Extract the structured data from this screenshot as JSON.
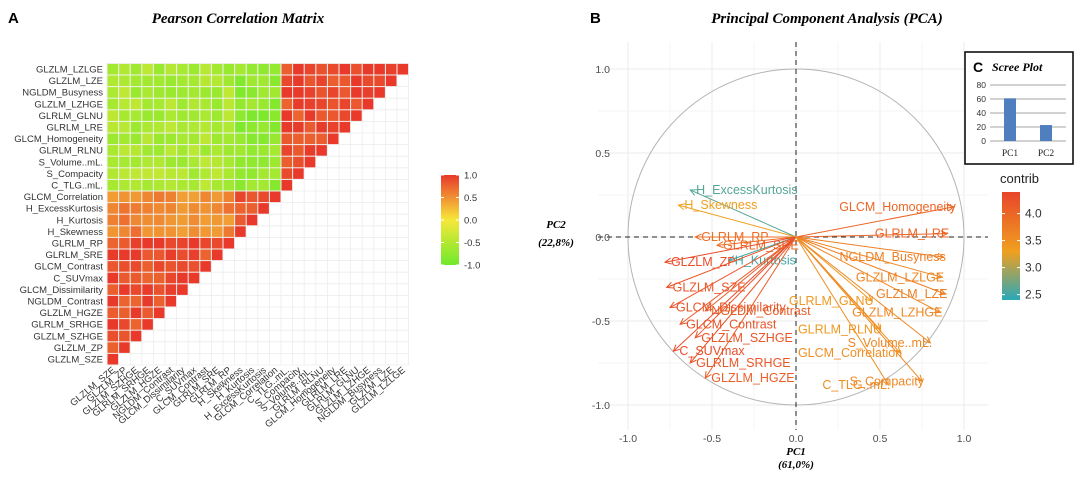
{
  "colors": {
    "high": "#e8392b",
    "mid": "#f7e83a",
    "low": "#6fe92a",
    "grid": "#ececec",
    "contrib_low": "#2aa8b8",
    "contrib_mid": "#f0a020",
    "contrib_high": "#e8452b",
    "bar": "#4f7fbe"
  },
  "chart_data": [
    {
      "panel": "A",
      "type": "heatmap",
      "title": "Pearson Correlation Matrix",
      "variables": [
        "GLZLM_SZE",
        "GLZLM_ZP",
        "GLZLM_SZHGE",
        "GLRLM_SRHGE",
        "GLZLM_HGZE",
        "NGLDM_Contrast",
        "GLCM_Dissimilarity",
        "C_SUVmax",
        "GLCM_Contrast",
        "GLRLM_SRE",
        "GLRLM_RP",
        "H_Skewness",
        "H_Kurtosis",
        "H_ExcessKurtosis",
        "GLCM_Correlation",
        "C_TLG..mL.",
        "S_Compacity",
        "S_Volume..mL.",
        "GLRLM_RLNU",
        "GLCM_Homogeneity",
        "GLRLM_LRE",
        "GLRLM_GLNU",
        "GLZLM_LZHGE",
        "NGLDM_Busyness",
        "GLZLM_LZE",
        "GLZLM_LZLGE"
      ],
      "x_tick_labels": [
        "GLZLM_SZE",
        "GLZLM_ZP",
        "GLZLM_SZHGE",
        "GLRLM_SRHGE",
        "GLZLM_HGZE",
        "NGLDM_Contrast",
        "GLCM_Dissimilarity",
        "C_SUVmax",
        "GLCM_Contrast",
        "GLRLM_SRE",
        "GLRLM_RP",
        "H_Skewness",
        "H_Kurtosis",
        "H_ExcessKurtosis",
        "GLCM_Correlation",
        "C_TLG..mL.",
        "S_Compacity",
        "S_Volume..mL.",
        "GLRLM_RLNU",
        "GLCM_Homogeneity",
        "GLRLM_LRE",
        "GLRLM_GLNU",
        "GLZLM_LZHGE",
        "NGLDM_Busyness",
        "GLZLM_LZE",
        "GLZLM_LZLGE"
      ],
      "group1_count": 11,
      "group2_count": 4,
      "group3_count": 11,
      "within_group_r": 0.9,
      "group1_vs_group2_r": 0.55,
      "group1_vs_group3_r": -0.55,
      "group2_vs_group3_r": -0.75,
      "legend": {
        "ticks": [
          "1.0",
          "0.5",
          "0.0",
          "-0.5",
          "-1.0"
        ],
        "range": [
          -1,
          1
        ]
      }
    },
    {
      "panel": "B",
      "type": "scatter",
      "title": "Principal Component Analysis (PCA)",
      "xlabel": "PC1",
      "xlabel_pct": "(61,0%)",
      "ylabel": "PC2",
      "ylabel_pct": "(22,8%)",
      "xlim": [
        -1.1,
        1.1
      ],
      "ylim": [
        -1.1,
        1.1
      ],
      "x_ticks": [
        "-1.0",
        "-0.5",
        "0.0",
        "0.5",
        "1.0"
      ],
      "y_ticks": [
        "1.0",
        "0.5",
        "0.0",
        "-0.5",
        "-1.0"
      ],
      "legend": {
        "title": "contrib",
        "ticks": [
          "4.0",
          "3.5",
          "3.0",
          "2.5"
        ],
        "range": [
          2.4,
          4.4
        ]
      },
      "vectors": [
        {
          "name": "H_ExcessKurtosis",
          "x": -0.63,
          "y": 0.28,
          "contrib": 2.6
        },
        {
          "name": "H_Skewness",
          "x": -0.7,
          "y": 0.19,
          "contrib": 3.3
        },
        {
          "name": "GLRLM_RP",
          "x": -0.6,
          "y": 0.0,
          "contrib": 3.9
        },
        {
          "name": "GLRLM_SRE",
          "x": -0.47,
          "y": -0.05,
          "contrib": 3.9
        },
        {
          "name": "H_Kurtosis",
          "x": -0.4,
          "y": -0.14,
          "contrib": 2.5
        },
        {
          "name": "GLZLM_ZP",
          "x": -0.78,
          "y": -0.15,
          "contrib": 4.3
        },
        {
          "name": "GLZLM_SZE",
          "x": -0.77,
          "y": -0.3,
          "contrib": 4.2
        },
        {
          "name": "GLCM_Dissimilarity",
          "x": -0.75,
          "y": -0.42,
          "contrib": 4.2
        },
        {
          "name": "NGLDM_Contrast",
          "x": -0.54,
          "y": -0.44,
          "contrib": 4.1
        },
        {
          "name": "GLCM_Contrast",
          "x": -0.69,
          "y": -0.52,
          "contrib": 4.2
        },
        {
          "name": "GLZLM_SZHGE",
          "x": -0.6,
          "y": -0.6,
          "contrib": 4.2
        },
        {
          "name": "C_SUVmax",
          "x": -0.73,
          "y": -0.68,
          "contrib": 4.3
        },
        {
          "name": "GLRLM_SRHGE",
          "x": -0.63,
          "y": -0.75,
          "contrib": 4.2
        },
        {
          "name": "GLZLM_HGZE",
          "x": -0.54,
          "y": -0.84,
          "contrib": 4.1
        },
        {
          "name": "GLCM_Homogeneity",
          "x": 0.94,
          "y": 0.18,
          "contrib": 4.0
        },
        {
          "name": "GLRLM_LRE",
          "x": 0.9,
          "y": 0.02,
          "contrib": 4.0
        },
        {
          "name": "NGLDM_Busyness",
          "x": 0.88,
          "y": -0.12,
          "contrib": 3.7
        },
        {
          "name": "GLZLM_LZLGE",
          "x": 0.87,
          "y": -0.24,
          "contrib": 3.6
        },
        {
          "name": "GLZLM_LZE",
          "x": 0.89,
          "y": -0.34,
          "contrib": 3.7
        },
        {
          "name": "GLRLM_GLNU",
          "x": 0.45,
          "y": -0.38,
          "contrib": 3.4
        },
        {
          "name": "GLZLM_LZHGE",
          "x": 0.86,
          "y": -0.45,
          "contrib": 3.6
        },
        {
          "name": "GLRLM_RLNU",
          "x": 0.5,
          "y": -0.55,
          "contrib": 3.4
        },
        {
          "name": "S_Volume..mL.",
          "x": 0.8,
          "y": -0.63,
          "contrib": 3.6
        },
        {
          "name": "GLCM_Correlation",
          "x": 0.62,
          "y": -0.69,
          "contrib": 3.5
        },
        {
          "name": "C_TLG..mL.",
          "x": 0.55,
          "y": -0.88,
          "contrib": 3.5
        },
        {
          "name": "S_Compacity",
          "x": 0.75,
          "y": -0.86,
          "contrib": 3.6
        }
      ]
    },
    {
      "panel": "C",
      "type": "bar",
      "title": "Scree Plot",
      "categories": [
        "PC1",
        "PC2"
      ],
      "values": [
        61.0,
        22.8
      ],
      "ylim": [
        0,
        80
      ],
      "y_ticks": [
        "80",
        "60",
        "40",
        "20",
        "0"
      ]
    }
  ]
}
